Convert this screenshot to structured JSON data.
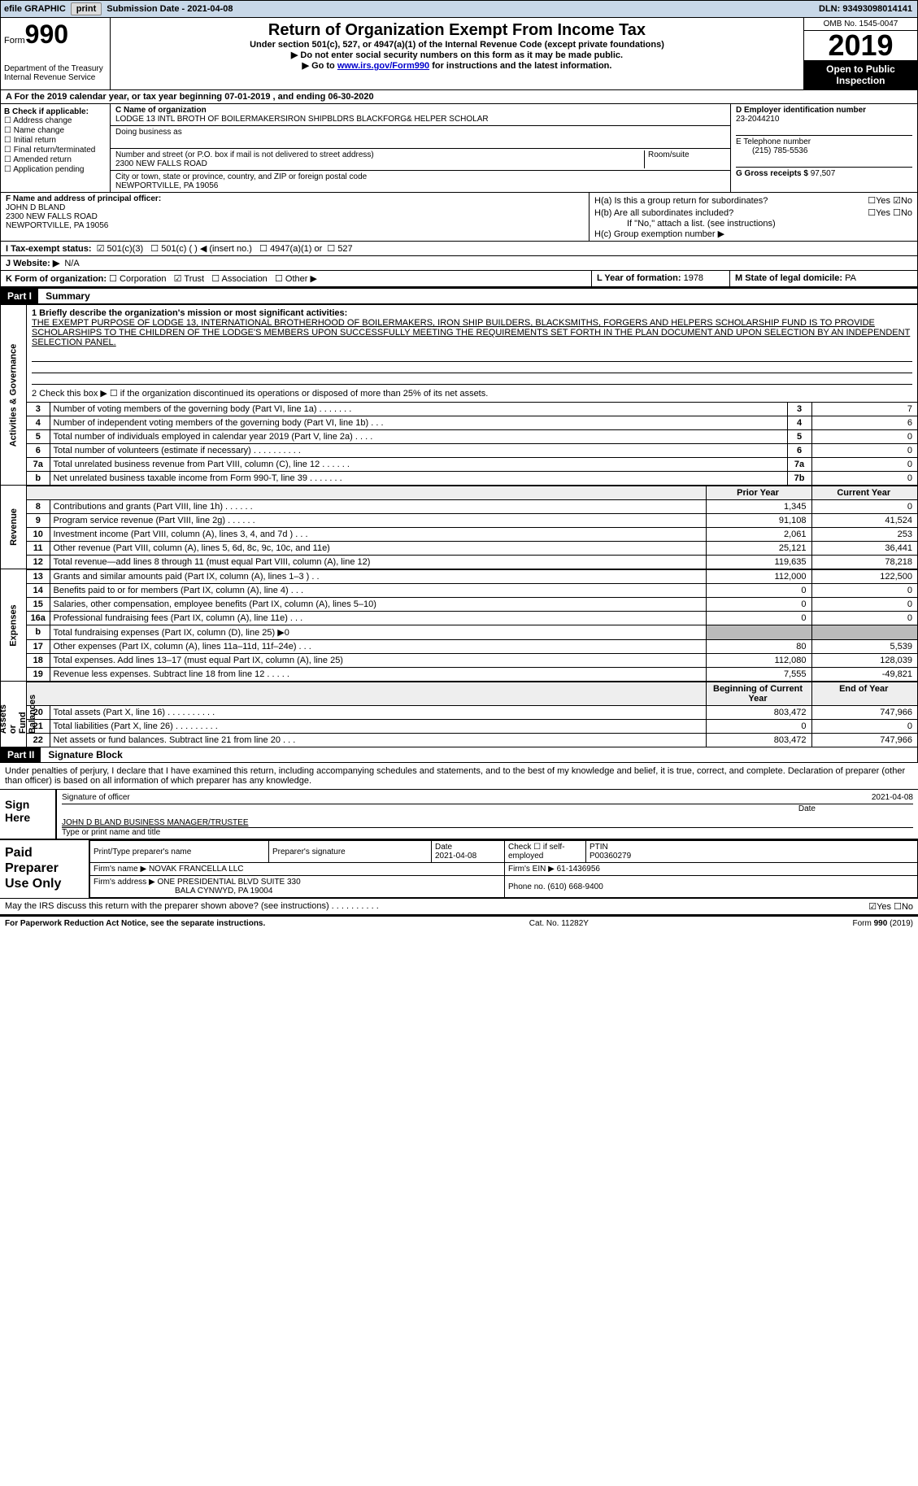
{
  "colors": {
    "topbar_bg": "#c8d8e8",
    "btn_bg": "#dcdcdc",
    "link": "#0000cc"
  },
  "topbar": {
    "efile": "efile GRAPHIC",
    "print": "print",
    "submission": "Submission Date - 2021-04-08",
    "dln": "DLN: 93493098014141"
  },
  "header": {
    "form_label": "Form",
    "form_num": "990",
    "dept": "Department of the Treasury\nInternal Revenue Service",
    "title": "Return of Organization Exempt From Income Tax",
    "sub1": "Under section 501(c), 527, or 4947(a)(1) of the Internal Revenue Code (except private foundations)",
    "sub2": "▶ Do not enter social security numbers on this form as it may be made public.",
    "sub3_pre": "▶ Go to ",
    "sub3_link": "www.irs.gov/Form990",
    "sub3_post": " for instructions and the latest information.",
    "omb": "OMB No. 1545-0047",
    "year": "2019",
    "open": "Open to Public Inspection"
  },
  "period": "A   For the 2019 calendar year, or tax year beginning 07-01-2019     , and ending 06-30-2020",
  "boxB": {
    "title": "B Check if applicable:",
    "items": [
      "Address change",
      "Name change",
      "Initial return",
      "Final return/terminated",
      "Amended return",
      "Application pending"
    ]
  },
  "boxC": {
    "name_lbl": "C Name of organization",
    "name": "LODGE 13 INTL BROTH OF BOILERMAKERSIRON SHIPBLDRS BLACKFORG& HELPER SCHOLAR",
    "dba": "Doing business as",
    "addr_lbl": "Number and street (or P.O. box if mail is not delivered to street address)",
    "room": "Room/suite",
    "addr": "2300 NEW FALLS ROAD",
    "city_lbl": "City or town, state or province, country, and ZIP or foreign postal code",
    "city": "NEWPORTVILLE, PA  19056"
  },
  "boxD": {
    "lbl": "D Employer identification number",
    "val": "23-2044210"
  },
  "boxE": {
    "lbl": "E Telephone number",
    "val": "(215) 785-5536"
  },
  "boxG": {
    "lbl": "G Gross receipts $",
    "val": "97,507"
  },
  "boxF": {
    "lbl": "F  Name and address of principal officer:",
    "name": "JOHN D BLAND",
    "addr1": "2300 NEW FALLS ROAD",
    "addr2": "NEWPORTVILLE, PA  19056"
  },
  "boxH": {
    "a": "H(a)  Is this a group return for subordinates?",
    "b": "H(b)  Are all subordinates included?",
    "note": "If \"No,\" attach a list. (see instructions)",
    "c": "H(c)  Group exemption number ▶",
    "yes": "Yes",
    "no": "No"
  },
  "lineI": {
    "lbl": "I   Tax-exempt status:",
    "o1": "501(c)(3)",
    "o2": "501(c) (  ) ◀ (insert no.)",
    "o3": "4947(a)(1) or",
    "o4": "527"
  },
  "lineJ": {
    "lbl": "J   Website: ▶",
    "val": "N/A"
  },
  "lineK": {
    "lbl": "K Form of organization:",
    "o1": "Corporation",
    "o2": "Trust",
    "o3": "Association",
    "o4": "Other ▶"
  },
  "lineL": {
    "lbl": "L Year of formation:",
    "val": "1978"
  },
  "lineM": {
    "lbl": "M State of legal domicile:",
    "val": "PA"
  },
  "part1": {
    "hdr": "Part I",
    "title": "Summary"
  },
  "summary": {
    "q1": "1  Briefly describe the organization's mission or most significant activities:",
    "mission": "THE EXEMPT PURPOSE OF LODGE 13, INTERNATIONAL BROTHERHOOD OF BOILERMAKERS, IRON SHIP BUILDERS, BLACKSMITHS, FORGERS AND HELPERS SCHOLARSHIP FUND IS TO PROVIDE SCHOLARSHIPS TO THE CHILDREN OF THE LODGE'S MEMBERS UPON SUCCESSFULLY MEETING THE REQUIREMENTS SET FORTH IN THE PLAN DOCUMENT AND UPON SELECTION BY AN INDEPENDENT SELECTION PANEL.",
    "q2": "2   Check this box ▶ ☐  if the organization discontinued its operations or disposed of more than 25% of its net assets.",
    "rows_ag": [
      {
        "n": "3",
        "d": "Number of voting members of the governing body (Part VI, line 1a)   .    .    .    .    .    .    .",
        "r": "3",
        "v": "7"
      },
      {
        "n": "4",
        "d": "Number of independent voting members of the governing body (Part VI, line 1b)   .    .    .",
        "r": "4",
        "v": "6"
      },
      {
        "n": "5",
        "d": "Total number of individuals employed in calendar year 2019 (Part V, line 2a)   .    .    .    .",
        "r": "5",
        "v": "0"
      },
      {
        "n": "6",
        "d": "Total number of volunteers (estimate if necessary)   .    .    .    .    .    .    .    .    .    .",
        "r": "6",
        "v": "0"
      },
      {
        "n": "7a",
        "d": "Total unrelated business revenue from Part VIII, column (C), line 12   .    .    .    .    .    .",
        "r": "7a",
        "v": "0"
      },
      {
        "n": "b",
        "d": "Net unrelated business taxable income from Form 990-T, line 39   .    .    .    .    .    .    .",
        "r": "7b",
        "v": "0"
      }
    ],
    "col_hdr_prior": "Prior Year",
    "col_hdr_curr": "Current Year",
    "revenue": [
      {
        "n": "8",
        "d": "Contributions and grants (Part VIII, line 1h)   .    .    .    .    .    .",
        "p": "1,345",
        "c": "0"
      },
      {
        "n": "9",
        "d": "Program service revenue (Part VIII, line 2g)   .    .    .    .    .    .",
        "p": "91,108",
        "c": "41,524"
      },
      {
        "n": "10",
        "d": "Investment income (Part VIII, column (A), lines 3, 4, and 7d )    .    .    .",
        "p": "2,061",
        "c": "253"
      },
      {
        "n": "11",
        "d": "Other revenue (Part VIII, column (A), lines 5, 6d, 8c, 9c, 10c, and 11e)",
        "p": "25,121",
        "c": "36,441"
      },
      {
        "n": "12",
        "d": "Total revenue—add lines 8 through 11 (must equal Part VIII, column (A), line 12)",
        "p": "119,635",
        "c": "78,218"
      }
    ],
    "expenses": [
      {
        "n": "13",
        "d": "Grants and similar amounts paid (Part IX, column (A), lines 1–3 )  .    .",
        "p": "112,000",
        "c": "122,500"
      },
      {
        "n": "14",
        "d": "Benefits paid to or for members (Part IX, column (A), line 4)  .    .    .",
        "p": "0",
        "c": "0"
      },
      {
        "n": "15",
        "d": "Salaries, other compensation, employee benefits (Part IX, column (A), lines 5–10)",
        "p": "0",
        "c": "0"
      },
      {
        "n": "16a",
        "d": "Professional fundraising fees (Part IX, column (A), line 11e)   .    .    .",
        "p": "0",
        "c": "0"
      },
      {
        "n": "b",
        "d": "Total fundraising expenses (Part IX, column (D), line 25) ▶0",
        "p": "",
        "c": "",
        "shade": true
      },
      {
        "n": "17",
        "d": "Other expenses (Part IX, column (A), lines 11a–11d, 11f–24e)   .    .    .",
        "p": "80",
        "c": "5,539"
      },
      {
        "n": "18",
        "d": "Total expenses. Add lines 13–17 (must equal Part IX, column (A), line 25)",
        "p": "112,080",
        "c": "128,039"
      },
      {
        "n": "19",
        "d": "Revenue less expenses. Subtract line 18 from line 12   .    .    .    .    .",
        "p": "7,555",
        "c": "-49,821"
      }
    ],
    "col_hdr_beg": "Beginning of Current Year",
    "col_hdr_end": "End of Year",
    "netassets": [
      {
        "n": "20",
        "d": "Total assets (Part X, line 16)  .    .    .    .    .    .    .    .    .    .",
        "p": "803,472",
        "c": "747,966"
      },
      {
        "n": "21",
        "d": "Total liabilities (Part X, line 26)  .    .    .    .    .    .    .    .    .",
        "p": "0",
        "c": "0"
      },
      {
        "n": "22",
        "d": "Net assets or fund balances. Subtract line 21 from line 20  .    .    .",
        "p": "803,472",
        "c": "747,966"
      }
    ],
    "vlabels": {
      "ag": "Activities & Governance",
      "rev": "Revenue",
      "exp": "Expenses",
      "net": "Net Assets or\nFund Balances"
    }
  },
  "part2": {
    "hdr": "Part II",
    "title": "Signature Block",
    "decl": "Under penalties of perjury, I declare that I have examined this return, including accompanying schedules and statements, and to the best of my knowledge and belief, it is true, correct, and complete. Declaration of preparer (other than officer) is based on all information of which preparer has any knowledge."
  },
  "sign": {
    "here": "Sign Here",
    "sig_lbl": "Signature of officer",
    "date_lbl": "Date",
    "date": "2021-04-08",
    "name": "JOHN D BLAND  BUSINESS MANAGER/TRUSTEE",
    "type_lbl": "Type or print name and title"
  },
  "paid": {
    "title": "Paid Preparer Use Only",
    "h1": "Print/Type preparer's name",
    "h2": "Preparer's signature",
    "h3": "Date",
    "h3v": "2021-04-08",
    "h4": "Check ☐ if self-employed",
    "h5": "PTIN",
    "h5v": "P00360279",
    "firm_lbl": "Firm's name    ▶",
    "firm": "NOVAK FRANCELLA LLC",
    "ein_lbl": "Firm's EIN ▶",
    "ein": "61-1436956",
    "addr_lbl": "Firm's address ▶",
    "addr": "ONE PRESIDENTIAL BLVD SUITE 330",
    "addr2": "BALA CYNWYD, PA  19004",
    "phone_lbl": "Phone no.",
    "phone": "(610) 668-9400"
  },
  "footer": {
    "q": "May the IRS discuss this return with the preparer shown above? (see instructions)   .    .    .    .    .    .    .    .    .    .",
    "yes": "Yes",
    "no": "No",
    "pra": "For Paperwork Reduction Act Notice, see the separate instructions.",
    "cat": "Cat. No. 11282Y",
    "form": "Form 990 (2019)"
  }
}
